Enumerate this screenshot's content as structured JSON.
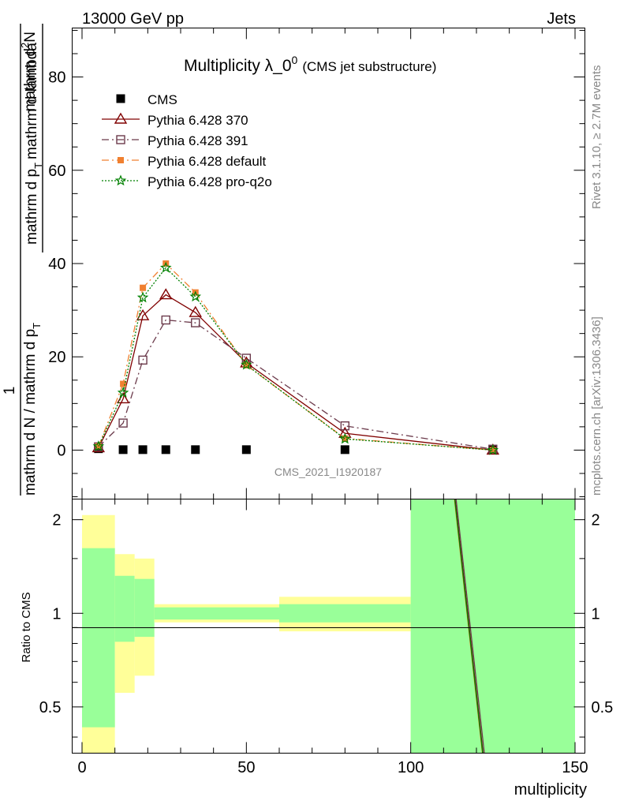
{
  "header": {
    "left": "13000 GeV pp",
    "right": "Jets"
  },
  "side_labels": {
    "rivet": "Rivet 3.1.10, ≥ 2.7M events",
    "mcplots": "mcplots.cern.ch [arXiv:1306.3436]"
  },
  "chart_data": [
    {
      "type": "line",
      "title_main": "Multiplicity λ_0",
      "title_sup": "0",
      "title_sub": "(CMS jet substructure)",
      "ylabel_numerator": "1",
      "ylabel_denominator": "mathrm d N / mathrm d p",
      "ylabel_denominator_sub": "T",
      "ylabel_fraction": "mathrm d",
      "ylabel_fraction_sup": "2",
      "ylabel_fraction_rest": "N",
      "ylabel_fraction_den": "mathrm d p",
      "ylabel_fraction_den_sub": "T",
      "ylabel_fraction_den_rest": "mathrm d lambda",
      "watermark": "CMS_2021_I1920187",
      "xlim": [
        -3,
        153
      ],
      "ylim": [
        -10.5,
        90.5
      ],
      "yticks": [
        0,
        20,
        40,
        60,
        80
      ],
      "ytick_labels": [
        "0",
        "20",
        "40",
        "60",
        "80"
      ],
      "legend_position": "top-left",
      "series": [
        {
          "name": "CMS",
          "marker": "square",
          "color": "#000000",
          "x": [
            5,
            12.5,
            18.5,
            25.5,
            34.5,
            50,
            80,
            125
          ],
          "y": [
            0.3,
            0.1,
            0.1,
            0.1,
            0.1,
            0.1,
            0.1,
            0.0
          ]
        },
        {
          "name": "Pythia 6.428 370",
          "marker": "triangle-open",
          "line": "solid",
          "color": "#800000",
          "x": [
            5,
            12.5,
            18.5,
            25.5,
            34.5,
            50,
            80,
            125
          ],
          "y": [
            0.5,
            11.0,
            28.8,
            33.3,
            29.5,
            18.7,
            3.6,
            0.0
          ]
        },
        {
          "name": "Pythia 6.428 391",
          "marker": "square-open",
          "line": "dashdot",
          "color": "#6b3a4b",
          "x": [
            5,
            12.5,
            18.5,
            25.5,
            34.5,
            50,
            80,
            125
          ],
          "y": [
            0.7,
            5.8,
            19.3,
            27.9,
            27.3,
            19.7,
            5.2,
            0.2
          ]
        },
        {
          "name": "Pythia 6.428 default",
          "marker": "square-filled",
          "line": "dashdot",
          "color": "#f08030",
          "x": [
            5,
            12.5,
            18.5,
            25.5,
            34.5,
            50,
            80,
            125
          ],
          "y": [
            0.8,
            14.2,
            34.8,
            40.0,
            33.8,
            18.2,
            2.5,
            0.0
          ]
        },
        {
          "name": "Pythia 6.428 pro-q2o",
          "marker": "star",
          "line": "dotted",
          "color": "#008000",
          "x": [
            5,
            12.5,
            18.5,
            25.5,
            34.5,
            50,
            80,
            125
          ],
          "y": [
            0.8,
            12.3,
            32.7,
            39.1,
            32.9,
            18.3,
            2.4,
            0.0
          ]
        }
      ]
    },
    {
      "type": "area",
      "ylabel": "Ratio to CMS",
      "xlabel": "multiplicity",
      "xlim": [
        -3,
        153
      ],
      "ylim": [
        0.355,
        2.33
      ],
      "yscale": "log",
      "xticks": [
        0,
        50,
        100,
        150
      ],
      "xtick_labels": [
        "0",
        "50",
        "100",
        "150"
      ],
      "yticks": [
        0.5,
        1,
        2
      ],
      "ytick_labels": [
        "0.5",
        "1",
        "2"
      ],
      "bands": [
        {
          "x0": 0,
          "x1": 10,
          "yellow": [
            0.355,
            2.07
          ],
          "green": [
            0.43,
            1.62
          ]
        },
        {
          "x0": 10,
          "x1": 16,
          "yellow": [
            0.555,
            1.55
          ],
          "green": [
            0.81,
            1.32
          ]
        },
        {
          "x0": 16,
          "x1": 22,
          "yellow": [
            0.63,
            1.5
          ],
          "green": [
            0.84,
            1.29
          ]
        },
        {
          "x0": 22,
          "x1": 60,
          "yellow": [
            0.935,
            1.07
          ],
          "green": [
            0.955,
            1.045
          ]
        },
        {
          "x0": 60,
          "x1": 100,
          "yellow": [
            0.875,
            1.13
          ],
          "green": [
            0.935,
            1.07
          ]
        },
        {
          "x0": 100,
          "x1": 150,
          "yellow": [
            0.355,
            2.33
          ],
          "green": [
            0.355,
            2.33
          ]
        }
      ],
      "ratio_lines": [
        {
          "name": "Pythia 6.428 370",
          "color": "#800000",
          "x": [
            113.5,
            122.0
          ],
          "y": [
            2.33,
            0.355
          ]
        },
        {
          "name": "Pythia 6.428 391",
          "color": "#6b3a4b",
          "x": [
            113.8,
            122.4
          ],
          "y": [
            2.33,
            0.355
          ]
        },
        {
          "name": "Pythia 6.428 default",
          "color": "#f08030",
          "x": [
            113.3,
            121.8
          ],
          "y": [
            2.33,
            0.355
          ]
        },
        {
          "name": "Pythia 6.428 pro-q2o",
          "color": "#008000",
          "x": [
            113.4,
            121.9
          ],
          "y": [
            2.33,
            0.355
          ]
        }
      ]
    }
  ]
}
